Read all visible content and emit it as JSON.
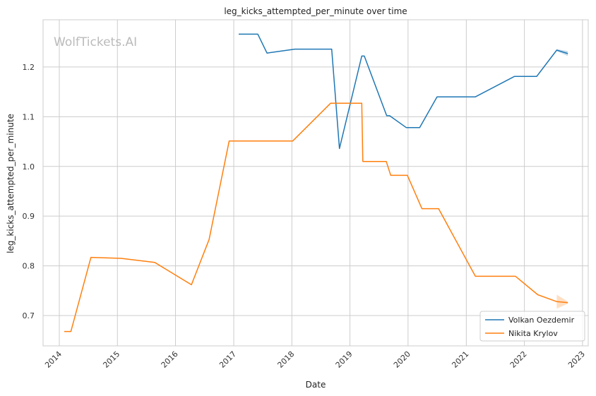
{
  "chart_data": {
    "type": "line",
    "title": "leg_kicks_attempted_per_minute over time",
    "xlabel": "Date",
    "ylabel": "leg_kicks_attempted_per_minute",
    "watermark": "WolfTickets.AI",
    "x_ticks": [
      "2014",
      "2015",
      "2016",
      "2017",
      "2018",
      "2019",
      "2020",
      "2021",
      "2022",
      "2023"
    ],
    "y_ticks": [
      "0.7",
      "0.8",
      "0.9",
      "1.0",
      "1.1",
      "1.2"
    ],
    "xlim": [
      "2013-09-21",
      "2023-02-06"
    ],
    "ylim": [
      0.639,
      1.295
    ],
    "grid": true,
    "legend_position": "bottom-right",
    "series": [
      {
        "name": "Volkan Oezdemir",
        "color": "#1f77b4",
        "points": [
          [
            "2017-02-01",
            1.266
          ],
          [
            "2017-06-01",
            1.266
          ],
          [
            "2017-07-29",
            1.228
          ],
          [
            "2018-01-20",
            1.236
          ],
          [
            "2018-09-08",
            1.236
          ],
          [
            "2018-10-27",
            1.036
          ],
          [
            "2019-03-16",
            1.222
          ],
          [
            "2019-04-01",
            1.222
          ],
          [
            "2019-08-20",
            1.102
          ],
          [
            "2019-09-07",
            1.102
          ],
          [
            "2019-12-21",
            1.078
          ],
          [
            "2020-03-14",
            1.078
          ],
          [
            "2020-07-01",
            1.14
          ],
          [
            "2021-02-27",
            1.14
          ],
          [
            "2021-10-30",
            1.181
          ],
          [
            "2022-03-19",
            1.181
          ],
          [
            "2022-07-23",
            1.234
          ],
          [
            "2022-10-01",
            1.227
          ]
        ],
        "band": [
          [
            "2022-07-23",
            1.236,
            1.232
          ],
          [
            "2022-10-01",
            1.232,
            1.222
          ]
        ]
      },
      {
        "name": "Nikita Krylov",
        "color": "#ff7f0e",
        "points": [
          [
            "2014-02-01",
            0.668
          ],
          [
            "2014-03-15",
            0.668
          ],
          [
            "2014-07-19",
            0.817
          ],
          [
            "2015-01-24",
            0.815
          ],
          [
            "2015-08-23",
            0.807
          ],
          [
            "2016-04-10",
            0.762
          ],
          [
            "2016-07-30",
            0.853
          ],
          [
            "2016-12-03",
            1.051
          ],
          [
            "2018-01-06",
            1.051
          ],
          [
            "2018-09-01",
            1.127
          ],
          [
            "2019-03-16",
            1.127
          ],
          [
            "2019-03-23",
            1.01
          ],
          [
            "2019-08-17",
            1.01
          ],
          [
            "2019-09-14",
            0.982
          ],
          [
            "2019-12-28",
            0.982
          ],
          [
            "2020-03-28",
            0.915
          ],
          [
            "2020-07-11",
            0.915
          ],
          [
            "2021-02-27",
            0.779
          ],
          [
            "2021-11-06",
            0.779
          ],
          [
            "2022-03-26",
            0.742
          ],
          [
            "2022-07-23",
            0.728
          ],
          [
            "2022-10-01",
            0.726
          ]
        ],
        "band": [
          [
            "2022-07-23",
            0.742,
            0.714
          ],
          [
            "2022-10-01",
            0.728,
            0.724
          ]
        ]
      }
    ]
  }
}
